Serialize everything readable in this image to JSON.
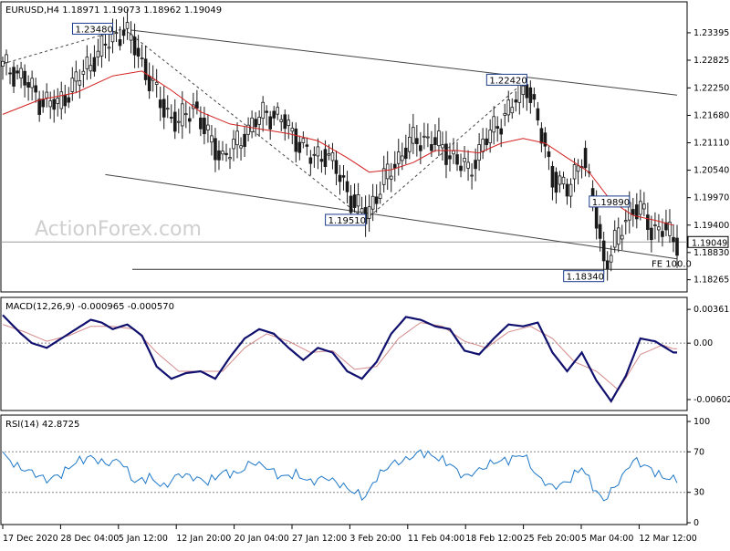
{
  "chart_data": [
    {
      "type": "candlestick",
      "symbol_header": "EURUSD,H4  1.18971 1.19073 1.18962 1.19049",
      "watermark": "ActionForex.com",
      "y_range": [
        1.1805,
        1.24
      ],
      "y_ticks": [
        "1.23395",
        "1.22825",
        "1.22250",
        "1.21680",
        "1.21110",
        "1.20540",
        "1.19970",
        "1.19400",
        "1.18830",
        "1.18265"
      ],
      "y_tick_values": [
        1.23395,
        1.22825,
        1.2225,
        1.2168,
        1.2111,
        1.2054,
        1.1997,
        1.194,
        1.1883,
        1.18265
      ],
      "current_price_label": "1.19049",
      "current_price": 1.19049,
      "x_labels": [
        "17 Dec 2020",
        "28 Dec 04:00",
        "5 Jan 12:00",
        "12 Jan 20:00",
        "20 Jan 04:00",
        "27 Jan 12:00",
        "3 Feb 20:00",
        "11 Feb 04:00",
        "18 Feb 12:00",
        "25 Feb 20:00",
        "5 Mar 04:00",
        "12 Mar 12:00"
      ],
      "annotations": [
        {
          "text": "1.23480",
          "price": 1.2348,
          "index": 30
        },
        {
          "text": "1.22420",
          "price": 1.2242,
          "index": 143
        },
        {
          "text": "1.19510",
          "price": 1.1951,
          "index": 99
        },
        {
          "text": "1.19890",
          "price": 1.1989,
          "index": 171
        },
        {
          "text": "1.18340",
          "price": 1.1834,
          "index": 164
        }
      ],
      "fe_label": "FE 100.0",
      "fe_level": 1.1848,
      "close_path": [
        [
          0,
          1.227
        ],
        [
          5,
          1.225
        ],
        [
          10,
          1.22
        ],
        [
          15,
          1.219
        ],
        [
          20,
          1.224
        ],
        [
          25,
          1.229
        ],
        [
          30,
          1.233
        ],
        [
          33,
          1.2345
        ],
        [
          36,
          1.231
        ],
        [
          40,
          1.224
        ],
        [
          44,
          1.218
        ],
        [
          48,
          1.215
        ],
        [
          52,
          1.219
        ],
        [
          56,
          1.212
        ],
        [
          60,
          1.208
        ],
        [
          64,
          1.211
        ],
        [
          68,
          1.215
        ],
        [
          72,
          1.2175
        ],
        [
          76,
          1.216
        ],
        [
          80,
          1.212
        ],
        [
          84,
          1.208
        ],
        [
          88,
          1.209
        ],
        [
          92,
          1.204
        ],
        [
          96,
          1.198
        ],
        [
          99,
          1.196
        ],
        [
          103,
          1.202
        ],
        [
          107,
          1.207
        ],
        [
          111,
          1.211
        ],
        [
          115,
          1.212
        ],
        [
          119,
          1.2105
        ],
        [
          123,
          1.208
        ],
        [
          127,
          1.205
        ],
        [
          131,
          1.211
        ],
        [
          135,
          1.215
        ],
        [
          139,
          1.219
        ],
        [
          143,
          1.2235
        ],
        [
          146,
          1.215
        ],
        [
          150,
          1.204
        ],
        [
          154,
          1.201
        ],
        [
          158,
          1.209
        ],
        [
          162,
          1.195
        ],
        [
          164,
          1.186
        ],
        [
          167,
          1.19
        ],
        [
          171,
          1.1975
        ],
        [
          174,
          1.197
        ],
        [
          177,
          1.193
        ],
        [
          180,
          1.1935
        ],
        [
          183,
          1.1905
        ]
      ],
      "ma_path": [
        [
          0,
          1.217
        ],
        [
          10,
          1.22
        ],
        [
          20,
          1.2215
        ],
        [
          30,
          1.225
        ],
        [
          38,
          1.226
        ],
        [
          46,
          1.222
        ],
        [
          54,
          1.2175
        ],
        [
          62,
          1.215
        ],
        [
          70,
          1.214
        ],
        [
          78,
          1.213
        ],
        [
          86,
          1.2115
        ],
        [
          94,
          1.208
        ],
        [
          100,
          1.205
        ],
        [
          106,
          1.2055
        ],
        [
          112,
          1.207
        ],
        [
          118,
          1.2095
        ],
        [
          124,
          1.2095
        ],
        [
          130,
          1.209
        ],
        [
          136,
          1.211
        ],
        [
          142,
          1.212
        ],
        [
          148,
          1.211
        ],
        [
          154,
          1.208
        ],
        [
          160,
          1.205
        ],
        [
          166,
          1.199
        ],
        [
          172,
          1.196
        ],
        [
          178,
          1.195
        ],
        [
          183,
          1.194
        ]
      ],
      "upper_channel": [
        [
          35,
          1.2345
        ],
        [
          184,
          1.221
        ]
      ],
      "lower_channel": [
        [
          28,
          1.2045
        ],
        [
          184,
          1.187
        ]
      ],
      "dashed_lines": [
        [
          [
            0,
            1.2275
          ],
          [
            33,
            1.2348
          ]
        ],
        [
          [
            33,
            1.2348
          ],
          [
            99,
            1.1951
          ]
        ],
        [
          [
            99,
            1.1951
          ],
          [
            143,
            1.2242
          ]
        ]
      ],
      "candle_count": 185
    },
    {
      "type": "line",
      "title": "MACD(12,26,9) -0.000965 -0.000570",
      "y_ticks": [
        "0.003613",
        "0.00",
        "-0.006026"
      ],
      "y_tick_values": [
        0.003613,
        0.0,
        -0.006026
      ],
      "y_range": [
        -0.007,
        0.0045
      ],
      "macd_path": [
        [
          0,
          0.003
        ],
        [
          5,
          0.001
        ],
        [
          8,
          0.0
        ],
        [
          12,
          -0.0005
        ],
        [
          16,
          0.0005
        ],
        [
          20,
          0.0015
        ],
        [
          24,
          0.0025
        ],
        [
          27,
          0.0022
        ],
        [
          30,
          0.0015
        ],
        [
          34,
          0.002
        ],
        [
          38,
          0.0008
        ],
        [
          42,
          -0.0025
        ],
        [
          46,
          -0.0038
        ],
        [
          50,
          -0.0032
        ],
        [
          54,
          -0.003
        ],
        [
          58,
          -0.0038
        ],
        [
          62,
          -0.0015
        ],
        [
          66,
          0.0005
        ],
        [
          70,
          0.0015
        ],
        [
          74,
          0.001
        ],
        [
          78,
          -0.0005
        ],
        [
          82,
          -0.0018
        ],
        [
          86,
          -0.0005
        ],
        [
          90,
          -0.001
        ],
        [
          94,
          -0.003
        ],
        [
          98,
          -0.0038
        ],
        [
          102,
          -0.002
        ],
        [
          106,
          0.001
        ],
        [
          110,
          0.0028
        ],
        [
          114,
          0.0025
        ],
        [
          118,
          0.0018
        ],
        [
          122,
          0.0015
        ],
        [
          126,
          -0.0008
        ],
        [
          130,
          -0.0012
        ],
        [
          134,
          0.0005
        ],
        [
          138,
          0.002
        ],
        [
          142,
          0.0018
        ],
        [
          146,
          0.0022
        ],
        [
          150,
          -0.001
        ],
        [
          154,
          -0.003
        ],
        [
          158,
          -0.001
        ],
        [
          162,
          -0.004
        ],
        [
          166,
          -0.0062
        ],
        [
          170,
          -0.0035
        ],
        [
          174,
          0.0005
        ],
        [
          178,
          0.0002
        ],
        [
          183,
          -0.001
        ]
      ],
      "signal_path": [
        [
          0,
          0.002
        ],
        [
          6,
          0.0012
        ],
        [
          12,
          0.0002
        ],
        [
          18,
          0.0008
        ],
        [
          24,
          0.0018
        ],
        [
          30,
          0.0018
        ],
        [
          36,
          0.0015
        ],
        [
          42,
          -0.001
        ],
        [
          48,
          -0.003
        ],
        [
          54,
          -0.003
        ],
        [
          60,
          -0.003
        ],
        [
          66,
          -0.0005
        ],
        [
          72,
          0.001
        ],
        [
          78,
          0.0002
        ],
        [
          84,
          -0.001
        ],
        [
          90,
          -0.0008
        ],
        [
          96,
          -0.0028
        ],
        [
          102,
          -0.0025
        ],
        [
          108,
          0.0005
        ],
        [
          114,
          0.0022
        ],
        [
          120,
          0.0018
        ],
        [
          126,
          0.0002
        ],
        [
          132,
          -0.0005
        ],
        [
          138,
          0.0012
        ],
        [
          144,
          0.0018
        ],
        [
          150,
          0.0005
        ],
        [
          156,
          -0.002
        ],
        [
          162,
          -0.003
        ],
        [
          168,
          -0.005
        ],
        [
          174,
          -0.0012
        ],
        [
          180,
          -0.0002
        ],
        [
          183,
          -0.0006
        ]
      ]
    },
    {
      "type": "line",
      "title": "RSI(14) 42.8725",
      "y_ticks": [
        "100",
        "70",
        "30",
        "0"
      ],
      "y_tick_values": [
        100,
        70,
        30,
        0
      ],
      "y_range": [
        0,
        100
      ],
      "levels": [
        70,
        30
      ],
      "rsi_path": [
        [
          0,
          68
        ],
        [
          4,
          55
        ],
        [
          8,
          50
        ],
        [
          12,
          42
        ],
        [
          16,
          48
        ],
        [
          20,
          60
        ],
        [
          24,
          65
        ],
        [
          28,
          58
        ],
        [
          32,
          62
        ],
        [
          36,
          40
        ],
        [
          40,
          45
        ],
        [
          44,
          35
        ],
        [
          48,
          48
        ],
        [
          52,
          45
        ],
        [
          56,
          40
        ],
        [
          60,
          50
        ],
        [
          64,
          48
        ],
        [
          68,
          60
        ],
        [
          72,
          55
        ],
        [
          76,
          45
        ],
        [
          80,
          48
        ],
        [
          84,
          40
        ],
        [
          88,
          45
        ],
        [
          92,
          38
        ],
        [
          96,
          30
        ],
        [
          99,
          25
        ],
        [
          102,
          45
        ],
        [
          106,
          58
        ],
        [
          110,
          62
        ],
        [
          114,
          70
        ],
        [
          118,
          65
        ],
        [
          122,
          58
        ],
        [
          126,
          45
        ],
        [
          130,
          52
        ],
        [
          134,
          60
        ],
        [
          138,
          62
        ],
        [
          142,
          68
        ],
        [
          146,
          45
        ],
        [
          150,
          35
        ],
        [
          154,
          40
        ],
        [
          158,
          55
        ],
        [
          162,
          30
        ],
        [
          164,
          22
        ],
        [
          168,
          40
        ],
        [
          172,
          62
        ],
        [
          176,
          55
        ],
        [
          180,
          45
        ],
        [
          183,
          43
        ]
      ]
    }
  ]
}
